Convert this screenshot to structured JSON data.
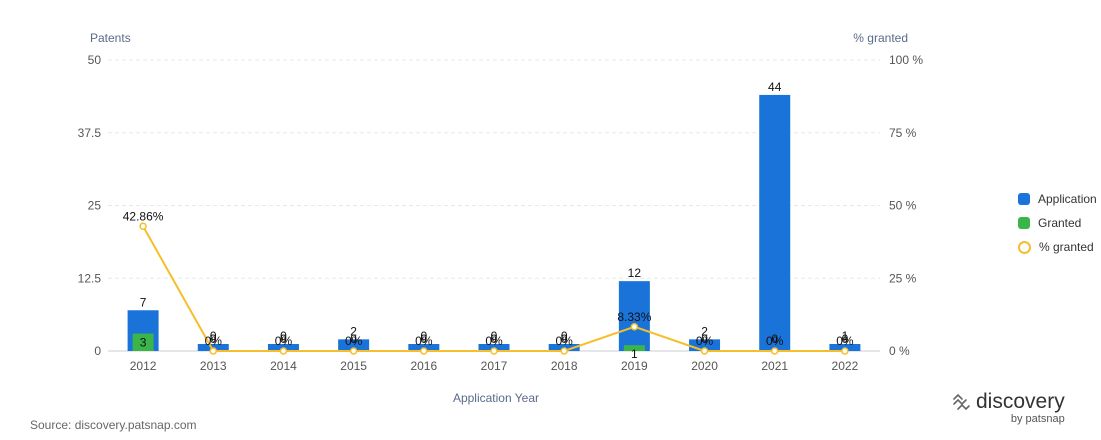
{
  "chart_data": {
    "type": "bar",
    "title": "",
    "xlabel": "Application Year",
    "ylabel_left": "Patents",
    "ylabel_right": "% granted",
    "ylim": [
      0,
      50
    ],
    "yticks": [
      "0",
      "12.5",
      "25",
      "37.5",
      "50"
    ],
    "y2lim": [
      0,
      100
    ],
    "y2ticks": [
      "0 %",
      "25 %",
      "50 %",
      "75 %",
      "100 %"
    ],
    "categories": [
      "2012",
      "2013",
      "2014",
      "2015",
      "2016",
      "2017",
      "2018",
      "2019",
      "2020",
      "2021",
      "2022"
    ],
    "series": [
      {
        "name": "Application",
        "kind": "bar",
        "color": "#1a73d9",
        "values": [
          7,
          0,
          0,
          2,
          0,
          0,
          0,
          12,
          2,
          44,
          1
        ]
      },
      {
        "name": "Granted",
        "kind": "bar",
        "color": "#3bb54a",
        "values": [
          3,
          0,
          0,
          0,
          0,
          0,
          0,
          1,
          0,
          0,
          0
        ]
      },
      {
        "name": "% granted",
        "kind": "line",
        "axis": "right",
        "color": "#f5be2a",
        "values": [
          42.86,
          0,
          0,
          0,
          0,
          0,
          0,
          8.33,
          0,
          0,
          0
        ],
        "labels": [
          "42.86%",
          "0%",
          "0%",
          "0%",
          "0%",
          "0%",
          "0%",
          "8.33%",
          "0%",
          "0%",
          "0%"
        ]
      }
    ],
    "grid": true,
    "legend_position": "right"
  },
  "footer": {
    "source": "Source: discovery.patsnap.com",
    "brand": "discovery",
    "brand_sub": "by patsnap"
  }
}
